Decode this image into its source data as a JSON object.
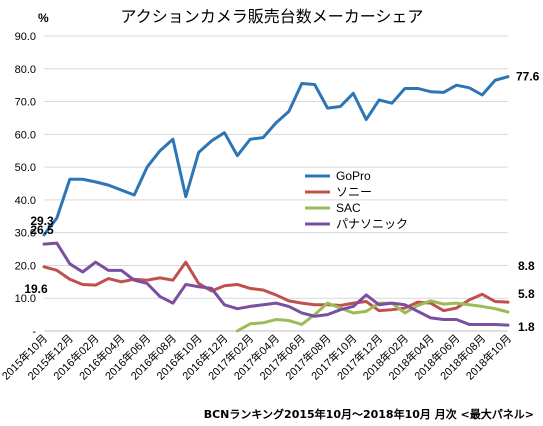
{
  "chart_data": {
    "type": "line",
    "title": "アクションカメラ販売台数メーカーシェア",
    "yunit": "%",
    "ylim": [
      0,
      90
    ],
    "yticks": [
      {
        "value": 0,
        "label": "-"
      },
      {
        "value": 10,
        "label": "10.0"
      },
      {
        "value": 20,
        "label": "20.0"
      },
      {
        "value": 30,
        "label": "30.0"
      },
      {
        "value": 40,
        "label": "40.0"
      },
      {
        "value": 50,
        "label": "50.0"
      },
      {
        "value": 60,
        "label": "60.0"
      },
      {
        "value": 70,
        "label": "70.0"
      },
      {
        "value": 80,
        "label": "80.0"
      },
      {
        "value": 90,
        "label": "90.0"
      }
    ],
    "categories": [
      "2015年10月",
      "2015年11月",
      "2015年12月",
      "2016年01月",
      "2016年02月",
      "2016年03月",
      "2016年04月",
      "2016年05月",
      "2016年06月",
      "2016年07月",
      "2016年08月",
      "2016年09月",
      "2016年10月",
      "2016年11月",
      "2016年12月",
      "2017年01月",
      "2017年02月",
      "2017年03月",
      "2017年04月",
      "2017年05月",
      "2017年06月",
      "2017年07月",
      "2017年08月",
      "2017年09月",
      "2017年10月",
      "2017年11月",
      "2017年12月",
      "2018年01月",
      "2018年02月",
      "2018年03月",
      "2018年04月",
      "2018年05月",
      "2018年06月",
      "2018年07月",
      "2018年08月",
      "2018年09月",
      "2018年10月"
    ],
    "tick_labels": [
      "2015年10月",
      "2015年12月",
      "2016年02月",
      "2016年04月",
      "2016年06月",
      "2016年08月",
      "2016年10月",
      "2016年12月",
      "2017年02月",
      "2017年04月",
      "2017年06月",
      "2017年08月",
      "2017年10月",
      "2017年12月",
      "2018年02月",
      "2018年04月",
      "2018年06月",
      "2018年08月",
      "2018年10月"
    ],
    "grid": true,
    "legend": "center-right",
    "series": [
      {
        "name": "GoPro",
        "color": "#2e75b6",
        "values": [
          29.3,
          34.5,
          46.3,
          46.3,
          45.5,
          44.5,
          43.0,
          41.5,
          50.0,
          55.0,
          58.5,
          41.0,
          54.5,
          58.0,
          60.5,
          53.5,
          58.5,
          59.0,
          63.5,
          67.0,
          75.5,
          75.2,
          68.0,
          68.5,
          72.5,
          64.5,
          70.5,
          69.5,
          74.0,
          74.0,
          73.0,
          72.8,
          75.0,
          74.2,
          72.0,
          76.5,
          77.6
        ]
      },
      {
        "name": "ソニー",
        "color": "#c0504d",
        "values": [
          19.6,
          18.5,
          15.8,
          14.2,
          14.0,
          16.0,
          15.0,
          15.8,
          15.5,
          16.2,
          15.5,
          21.0,
          14.5,
          12.2,
          13.8,
          14.2,
          13.0,
          12.5,
          11.0,
          9.2,
          8.5,
          8.0,
          8.0,
          7.8,
          8.5,
          9.0,
          6.2,
          6.5,
          7.0,
          8.8,
          8.5,
          6.2,
          7.0,
          9.5,
          11.2,
          9.0,
          8.8
        ]
      },
      {
        "name": "SAC",
        "color": "#9bbb59",
        "values": [
          null,
          null,
          null,
          null,
          null,
          null,
          null,
          null,
          null,
          null,
          null,
          null,
          null,
          null,
          null,
          0.0,
          2.2,
          2.5,
          3.5,
          3.2,
          2.0,
          5.0,
          8.5,
          7.0,
          5.5,
          6.0,
          8.5,
          8.5,
          5.5,
          7.8,
          9.2,
          8.2,
          8.5,
          8.0,
          7.5,
          6.8,
          5.8
        ]
      },
      {
        "name": "パナソニック",
        "color": "#7a4fa0",
        "values": [
          26.5,
          26.8,
          20.5,
          18.0,
          21.0,
          18.5,
          18.5,
          15.5,
          14.5,
          10.5,
          8.5,
          14.2,
          13.5,
          13.0,
          8.0,
          6.8,
          7.5,
          8.0,
          8.5,
          7.5,
          5.5,
          4.5,
          5.0,
          6.5,
          7.5,
          11.0,
          8.0,
          8.5,
          8.0,
          6.0,
          4.0,
          3.5,
          3.5,
          2.0,
          2.0,
          2.0,
          1.8
        ]
      }
    ],
    "data_labels": [
      {
        "series": 0,
        "index": 0,
        "text": "29.3"
      },
      {
        "series": 0,
        "index": 36,
        "text": "77.6"
      },
      {
        "series": 1,
        "index": 0,
        "text": "19.6"
      },
      {
        "series": 3,
        "index": 0,
        "text": "26.5"
      },
      {
        "series": 1,
        "index": 36,
        "text": "8.8"
      },
      {
        "series": 2,
        "index": 36,
        "text": "5.8"
      },
      {
        "series": 3,
        "index": 36,
        "text": "1.8"
      }
    ]
  },
  "footnote": "BCNランキング2015年10月～2018年10月 月次 <最大パネル>"
}
